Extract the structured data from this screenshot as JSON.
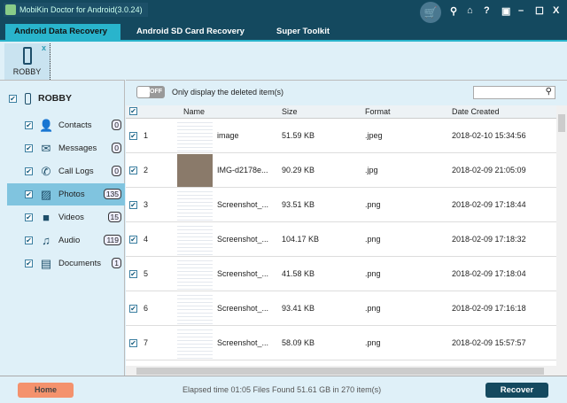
{
  "app": {
    "title": "MobiKin Doctor for Android(3.0.24)"
  },
  "tabs": [
    "Android Data Recovery",
    "Android SD Card Recovery",
    "Super Toolkit"
  ],
  "device": {
    "name": "ROBBY",
    "close": "x"
  },
  "sidebar": {
    "device": "ROBBY",
    "items": [
      {
        "label": "Contacts",
        "count": "0",
        "icon": "contact-card-icon"
      },
      {
        "label": "Messages",
        "count": "0",
        "icon": "envelope-icon"
      },
      {
        "label": "Call Logs",
        "count": "0",
        "icon": "phone-icon"
      },
      {
        "label": "Photos",
        "count": "135",
        "icon": "image-icon",
        "selected": true
      },
      {
        "label": "Videos",
        "count": "15",
        "icon": "video-camera-icon"
      },
      {
        "label": "Audio",
        "count": "119",
        "icon": "music-note-icon"
      },
      {
        "label": "Documents",
        "count": "1",
        "icon": "document-icon"
      }
    ]
  },
  "filter": {
    "toggle": "OFF",
    "label": "Only display the deleted item(s)"
  },
  "table": {
    "headers": [
      "Name",
      "Size",
      "Format",
      "Date Created"
    ],
    "rows": [
      [
        "1",
        "image",
        "51.59 KB",
        ".jpeg",
        "2018-02-10 15:34:56"
      ],
      [
        "2",
        "IMG-d2178e...",
        "90.29 KB",
        ".jpg",
        "2018-02-09 21:05:09"
      ],
      [
        "3",
        "Screenshot_...",
        "93.51 KB",
        ".png",
        "2018-02-09 17:18:44"
      ],
      [
        "4",
        "Screenshot_...",
        "104.17 KB",
        ".png",
        "2018-02-09 17:18:32"
      ],
      [
        "5",
        "Screenshot_...",
        "41.58 KB",
        ".png",
        "2018-02-09 17:18:04"
      ],
      [
        "6",
        "Screenshot_...",
        "93.41 KB",
        ".png",
        "2018-02-09 17:16:18"
      ],
      [
        "7",
        "Screenshot_...",
        "58.09 KB",
        ".png",
        "2018-02-09 15:57:57"
      ]
    ]
  },
  "footer": {
    "home": "Home",
    "status": "Elapsed time 01:05   Files Found 51.61 GB in 270 item(s)",
    "recover": "Recover"
  }
}
